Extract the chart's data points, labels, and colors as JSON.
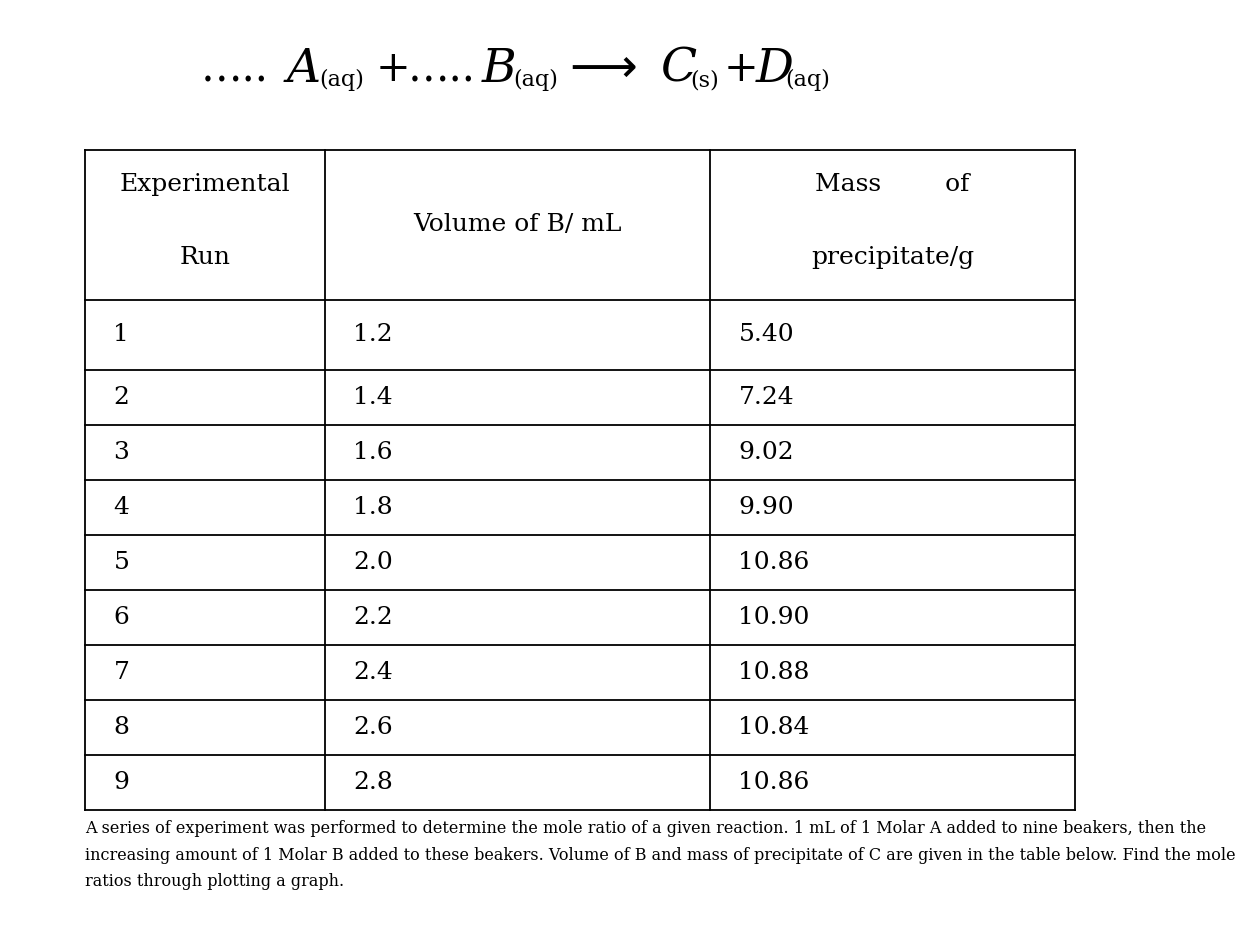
{
  "rows": [
    [
      1,
      "1.2",
      "5.40"
    ],
    [
      2,
      "1.4",
      "7.24"
    ],
    [
      3,
      "1.6",
      "9.02"
    ],
    [
      4,
      "1.8",
      "9.90"
    ],
    [
      5,
      "2.0",
      "10.86"
    ],
    [
      6,
      "2.2",
      "10.90"
    ],
    [
      7,
      "2.4",
      "10.88"
    ],
    [
      8,
      "2.6",
      "10.84"
    ],
    [
      9,
      "2.8",
      "10.86"
    ]
  ],
  "footer_text": "A series of experiment was performed to determine the mole ratio of a given reaction. 1 mL of 1 Molar A added to nine beakers, then the\nincreasing amount of 1 Molar B added to these beakers. Volume of B and mass of precipitate of C are given in the table below. Find the mole\nratios through plotting a graph.",
  "bg_color": "#ffffff",
  "text_color": "#000000",
  "table_font_size": 18,
  "eq_main_size": 30,
  "eq_sub_size": 16,
  "eq_letter_size": 34,
  "footer_font_size": 11.5
}
